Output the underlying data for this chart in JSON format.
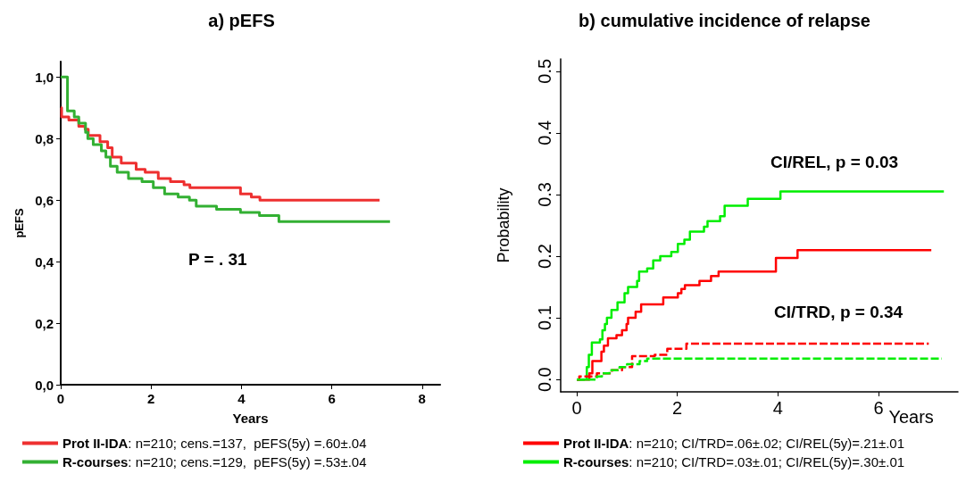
{
  "chart_data": [
    {
      "type": "step",
      "title": "a) pEFS",
      "xlabel": "Years",
      "ylabel": "pEFS",
      "xlim": [
        0,
        8.4
      ],
      "xticks": [
        0,
        2,
        4,
        6,
        8
      ],
      "ylim": [
        0,
        1.05
      ],
      "yticks": [
        {
          "value": 0,
          "label": "0,0"
        },
        {
          "value": 0.2,
          "label": "0,2"
        },
        {
          "value": 0.4,
          "label": "0,4"
        },
        {
          "value": 0.6,
          "label": "0,6"
        },
        {
          "value": 0.8,
          "label": "0,8"
        },
        {
          "value": 1,
          "label": "1,0"
        }
      ],
      "grid": false,
      "legend": "bottom",
      "annotations": [
        "P = . 31"
      ],
      "series": [
        {
          "name": "Prot II-IDA: n=210; cens.=137,  pEFS(5y) =.60±.04",
          "color": "#ee3030",
          "line_style": "solid",
          "x": [
            0,
            0.02,
            0.18,
            0.4,
            0.54,
            0.61,
            0.87,
            1.04,
            1.14,
            1.34,
            1.67,
            1.87,
            2.16,
            2.43,
            2.73,
            2.86,
            3.98,
            4.22,
            4.41,
            7.06
          ],
          "values": [
            0.9,
            0.87,
            0.86,
            0.84,
            0.83,
            0.81,
            0.79,
            0.77,
            0.74,
            0.72,
            0.7,
            0.69,
            0.67,
            0.66,
            0.65,
            0.64,
            0.62,
            0.61,
            0.6,
            0.6
          ]
        },
        {
          "name": "R-courses: n=210; cens.=129,  pEFS(5y) =.53±.04",
          "color": "#33b033",
          "line_style": "solid",
          "x": [
            0,
            0.15,
            0.3,
            0.4,
            0.55,
            0.6,
            0.72,
            0.9,
            1.0,
            1.1,
            1.25,
            1.5,
            1.8,
            2.05,
            2.3,
            2.6,
            2.85,
            3.0,
            3.45,
            3.98,
            4.4,
            4.83,
            7.29
          ],
          "values": [
            1.0,
            0.89,
            0.87,
            0.85,
            0.82,
            0.8,
            0.78,
            0.76,
            0.74,
            0.71,
            0.69,
            0.67,
            0.66,
            0.64,
            0.62,
            0.61,
            0.6,
            0.58,
            0.57,
            0.56,
            0.55,
            0.53,
            0.53
          ]
        }
      ]
    },
    {
      "type": "step",
      "title": "b) cumulative incidence of relapse",
      "xlabel": "Years",
      "ylabel": "Probability",
      "xlim": [
        -0.32,
        7.58
      ],
      "xticks": [
        0,
        2,
        4,
        6
      ],
      "ylim": [
        -0.02,
        0.52
      ],
      "yticks": [
        {
          "value": 0,
          "label": "0.0"
        },
        0.1,
        0.2,
        0.3,
        0.4,
        0.5
      ],
      "grid": false,
      "legend": "bottom",
      "annotations": [
        "CI/REL, p = 0.03",
        "CI/TRD, p = 0.34"
      ],
      "series": [
        {
          "name": "Prot II-IDA: n=210; CI/TRD=.06±.02; CI/REL(5y)=.21±.01",
          "color": "#ff0000",
          "line_style": "solid",
          "x": [
            0,
            0.25,
            0.31,
            0.49,
            0.54,
            0.62,
            0.79,
            0.9,
            0.99,
            1.02,
            1.17,
            1.28,
            1.72,
            2.01,
            2.08,
            2.15,
            2.44,
            2.67,
            2.82,
            3.96,
            4.39,
            7.05
          ],
          "values": [
            0,
            0.01,
            0.03,
            0.045,
            0.055,
            0.067,
            0.072,
            0.08,
            0.09,
            0.1,
            0.11,
            0.122,
            0.133,
            0.14,
            0.147,
            0.153,
            0.16,
            0.168,
            0.175,
            0.197,
            0.21,
            0.21
          ]
        },
        {
          "name": "R-courses: n=210; CI/TRD=.03±.01; CI/REL(5y)=.30±.01",
          "color": "#00ee00",
          "line_style": "solid",
          "x": [
            0,
            0.2,
            0.24,
            0.3,
            0.46,
            0.51,
            0.56,
            0.6,
            0.69,
            0.81,
            0.95,
            1.02,
            1.2,
            1.24,
            1.4,
            1.52,
            1.66,
            1.88,
            2.01,
            2.14,
            2.25,
            2.53,
            2.6,
            2.85,
            2.94,
            3.4,
            4.05,
            7.3
          ],
          "values": [
            0,
            0.02,
            0.04,
            0.06,
            0.065,
            0.08,
            0.09,
            0.1,
            0.113,
            0.125,
            0.14,
            0.15,
            0.16,
            0.175,
            0.18,
            0.193,
            0.2,
            0.207,
            0.22,
            0.227,
            0.24,
            0.248,
            0.257,
            0.265,
            0.282,
            0.293,
            0.305,
            0.305
          ]
        },
        {
          "color": "#ff0000",
          "line_style": "dashed",
          "x": [
            0,
            0.05,
            0.4,
            0.7,
            0.9,
            1.1,
            1.55,
            1.8,
            2.18,
            7.0
          ],
          "values": [
            0,
            0.005,
            0.01,
            0.015,
            0.02,
            0.038,
            0.04,
            0.05,
            0.058,
            0.058
          ]
        },
        {
          "color": "#00ee00",
          "line_style": "dashed",
          "x": [
            0,
            0.4,
            0.5,
            0.65,
            0.85,
            1.0,
            1.25,
            1.4,
            7.26
          ],
          "values": [
            0,
            0.005,
            0.01,
            0.015,
            0.02,
            0.025,
            0.03,
            0.034,
            0.034
          ]
        }
      ]
    }
  ]
}
